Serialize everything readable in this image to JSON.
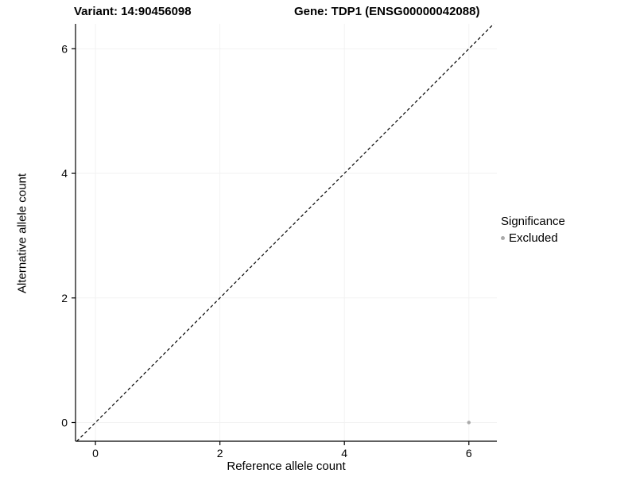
{
  "titles": {
    "variant": "Variant: 14:90456098",
    "gene": "Gene: TDP1 (ENSG00000042088)"
  },
  "chart_data": {
    "type": "scatter",
    "title_left": "Variant: 14:90456098",
    "title_right": "Gene: TDP1 (ENSG00000042088)",
    "xlabel": "Reference allele count",
    "ylabel": "Alternative allele count",
    "xlim": [
      -0.32,
      6.45
    ],
    "ylim": [
      -0.3,
      6.4
    ],
    "xticks": [
      0,
      2,
      4,
      6
    ],
    "yticks": [
      0,
      2,
      4,
      6
    ],
    "grid": true,
    "grid_color": "#f2f2f2",
    "axis_color": "#000000",
    "identity_line": {
      "style": "dashed",
      "color": "#000000",
      "from": -0.3,
      "to": 6.4
    },
    "series": [
      {
        "name": "Excluded",
        "color": "#aaaaaa",
        "points": [
          {
            "x": 6,
            "y": 0
          }
        ]
      }
    ],
    "legend": {
      "title": "Significance",
      "position": "right",
      "entries": [
        {
          "label": "Excluded",
          "color": "#aaaaaa"
        }
      ]
    }
  }
}
